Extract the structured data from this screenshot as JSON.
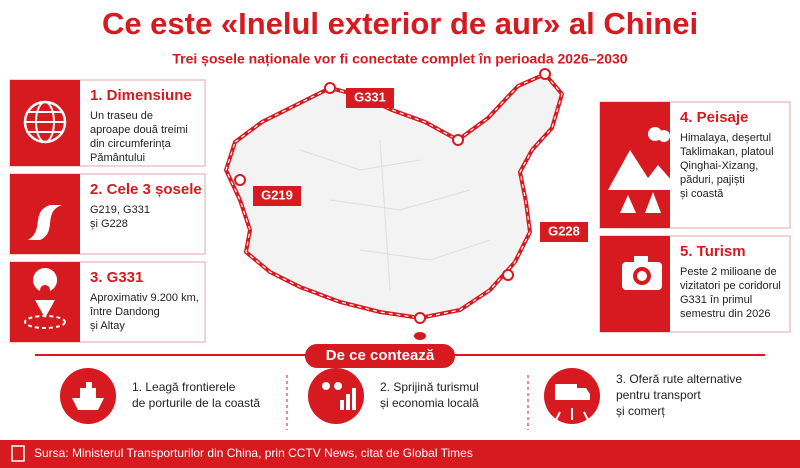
{
  "header": {
    "title": "Ce este «Inelul exterior de aur» al Chinei",
    "subtitle": "Trei șosele naționale vor fi conectate complet în perioada 2026–2030"
  },
  "map": {
    "labels": [
      "G331",
      "G219",
      "G228"
    ]
  },
  "cards": [
    {
      "title": "1. Dimensiune",
      "lines": [
        "Un traseu de",
        "aproape două treimi",
        "din circumferința",
        "Pământului"
      ]
    },
    {
      "title": "2. Cele 3 șosele",
      "lines": [
        "G219, G331",
        "și G228"
      ]
    },
    {
      "title": "3. G331",
      "lines": [
        "Aproximativ 9.200 km,",
        "între Dandong",
        "și Altay"
      ]
    },
    {
      "title": "4. Peisaje",
      "lines": [
        "Himalaya, deșertul",
        "Taklimakan, platoul",
        "Qinghai-Xizang,",
        "păduri, pajiști",
        "și coastă"
      ]
    },
    {
      "title": "5. Turism",
      "lines": [
        "Peste 2 milioane de",
        "vizitatori pe coridorul",
        "G331 în primul",
        "semestru din 2026"
      ]
    }
  ],
  "section": {
    "title": "De ce contează",
    "reasons": [
      {
        "lines": [
          "1. Leagă frontierele",
          "de porturile de la coastă"
        ]
      },
      {
        "lines": [
          "2. Sprijină turismul",
          "și economia locală"
        ]
      },
      {
        "lines": [
          "3. Oferă rute alternative",
          "pentru transport",
          "și comerț"
        ]
      }
    ]
  },
  "footer": {
    "source": "Sursa: Ministerul Transporturilor din China, prin CCTV News, citat de Global Times"
  }
}
